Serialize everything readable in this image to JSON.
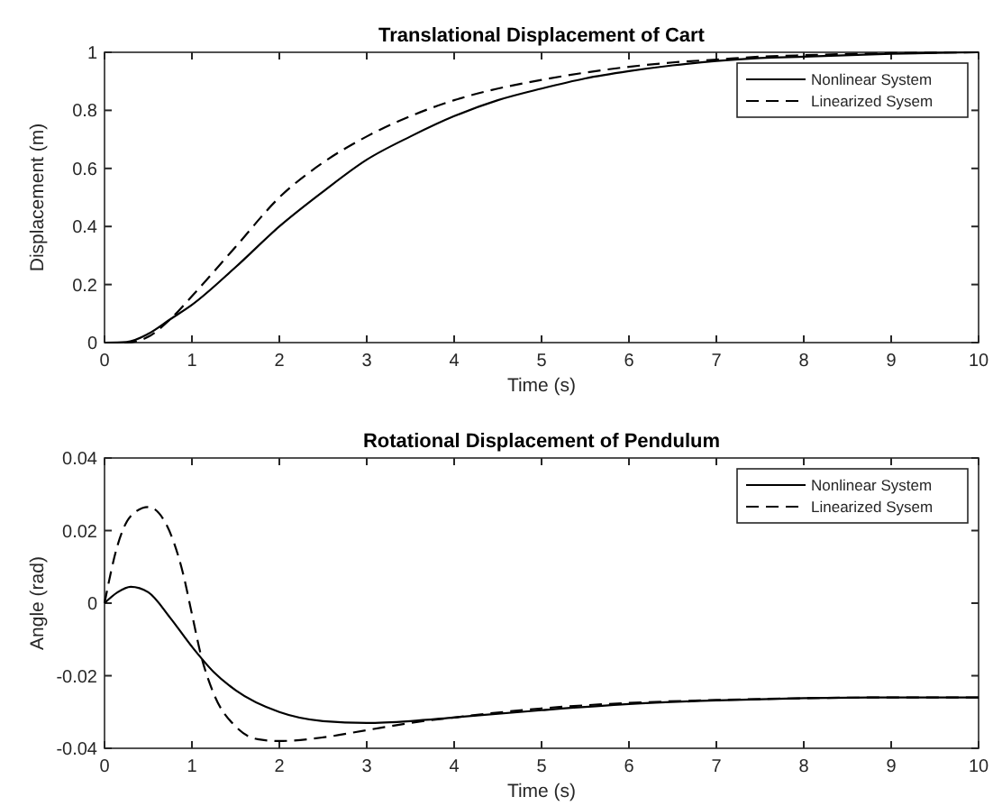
{
  "chart_data": [
    {
      "type": "line",
      "title": "Translational Displacement of Cart",
      "xlabel": "Time (s)",
      "ylabel": "Displacement (m)",
      "xlim": [
        0,
        10
      ],
      "ylim": [
        0,
        1
      ],
      "xticks": [
        0,
        1,
        2,
        3,
        4,
        5,
        6,
        7,
        8,
        9,
        10
      ],
      "yticks": [
        0,
        0.2,
        0.4,
        0.6,
        0.8,
        1
      ],
      "legend": "top right",
      "grid": false,
      "series": [
        {
          "name": "Nonlinear System",
          "color": "#000000",
          "line_style": "solid",
          "x": [
            0,
            0.25,
            0.5,
            0.75,
            1,
            1.5,
            2,
            2.5,
            3,
            3.5,
            4,
            4.5,
            5,
            5.5,
            6,
            6.5,
            7,
            7.5,
            8,
            9,
            10
          ],
          "values": [
            0,
            0.002,
            0.03,
            0.08,
            0.13,
            0.26,
            0.4,
            0.52,
            0.63,
            0.71,
            0.78,
            0.835,
            0.875,
            0.91,
            0.935,
            0.955,
            0.97,
            0.98,
            0.985,
            0.995,
            1.0
          ]
        },
        {
          "name": "Linearized Sysem",
          "color": "#000000",
          "line_style": "dashed",
          "x": [
            0,
            0.25,
            0.5,
            0.75,
            1,
            1.5,
            2,
            2.5,
            3,
            3.5,
            4,
            4.5,
            5,
            5.5,
            6,
            6.5,
            7,
            7.5,
            8,
            9,
            10
          ],
          "values": [
            0,
            0,
            0.02,
            0.08,
            0.16,
            0.33,
            0.5,
            0.62,
            0.71,
            0.78,
            0.835,
            0.875,
            0.905,
            0.93,
            0.95,
            0.965,
            0.975,
            0.985,
            0.99,
            0.997,
            1.0
          ]
        }
      ]
    },
    {
      "type": "line",
      "title": "Rotational Displacement of Pendulum",
      "xlabel": "Time (s)",
      "ylabel": "Angle (rad)",
      "xlim": [
        0,
        10
      ],
      "ylim": [
        -0.04,
        0.04
      ],
      "xticks": [
        0,
        1,
        2,
        3,
        4,
        5,
        6,
        7,
        8,
        9,
        10
      ],
      "yticks": [
        -0.04,
        -0.02,
        0,
        0.02,
        0.04
      ],
      "legend": "top right",
      "grid": false,
      "series": [
        {
          "name": "Nonlinear System",
          "color": "#000000",
          "line_style": "solid",
          "x": [
            0,
            0.15,
            0.3,
            0.5,
            0.75,
            1,
            1.25,
            1.5,
            2,
            2.5,
            3,
            3.5,
            4,
            5,
            6,
            7,
            8,
            9,
            10
          ],
          "values": [
            0,
            0.003,
            0.0045,
            0.003,
            -0.004,
            -0.012,
            -0.019,
            -0.024,
            -0.03,
            -0.0325,
            -0.033,
            -0.0325,
            -0.0315,
            -0.0295,
            -0.0278,
            -0.0268,
            -0.0262,
            -0.026,
            -0.026
          ]
        },
        {
          "name": "Linearized Sysem",
          "color": "#000000",
          "line_style": "dashed",
          "x": [
            0,
            0.15,
            0.3,
            0.5,
            0.7,
            0.9,
            1,
            1.1,
            1.25,
            1.5,
            1.75,
            2,
            2.5,
            3,
            3.5,
            4,
            5,
            6,
            7,
            8,
            9,
            10
          ],
          "values": [
            0,
            0.016,
            0.024,
            0.0265,
            0.022,
            0.008,
            -0.003,
            -0.014,
            -0.025,
            -0.034,
            -0.0375,
            -0.038,
            -0.037,
            -0.035,
            -0.033,
            -0.0315,
            -0.029,
            -0.0275,
            -0.0267,
            -0.0262,
            -0.026,
            -0.026
          ]
        }
      ]
    }
  ]
}
